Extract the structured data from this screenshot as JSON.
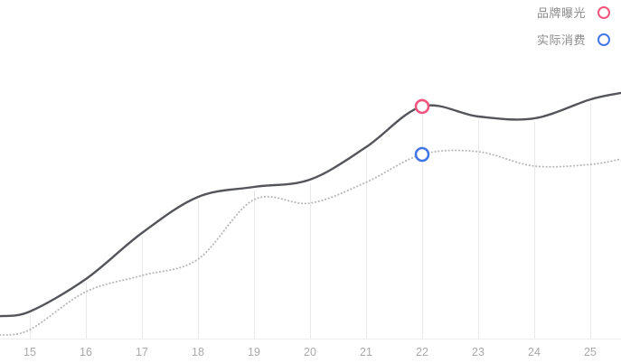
{
  "legend": {
    "items": [
      {
        "label": "品牌曝光",
        "color": "#f1557f"
      },
      {
        "label": "实际消费",
        "color": "#4476e8"
      }
    ]
  },
  "x_axis": {
    "labels": [
      "15",
      "16",
      "17",
      "18",
      "19",
      "20",
      "21",
      "22",
      "23",
      "24",
      "25"
    ],
    "label_color": "#a9a9a9",
    "axis_line_color": "#ededed",
    "dropline_color": "#e9e9e9"
  },
  "chart_data": {
    "type": "line",
    "title": "",
    "xlabel": "",
    "ylabel": "",
    "x": [
      15,
      16,
      17,
      18,
      19,
      20,
      21,
      22,
      23,
      24,
      25
    ],
    "xlim": [
      14.47,
      25.55
    ],
    "ylim": [
      0,
      100
    ],
    "grid": "vertical-droplines-only",
    "legend_position": "top-right",
    "series": [
      {
        "name": "品牌曝光",
        "style": "solid",
        "color": "#54555a",
        "values": [
          10,
          22,
          39,
          52.3,
          56,
          58.7,
          70.7,
          85.7,
          82,
          81.3,
          88.3
        ],
        "edge_start": {
          "x": 14.47,
          "value": 8.3
        },
        "edge_end": {
          "x": 25.55,
          "value": 90.7
        },
        "highlight_marker": {
          "x": 22,
          "value": 85.7,
          "ring_color": "#f1557f"
        }
      },
      {
        "name": "实际消费",
        "style": "dotted",
        "color": "#b8b8b8",
        "values": [
          3.3,
          17.3,
          23.3,
          29.3,
          51.3,
          50,
          57.7,
          68,
          69,
          63.7,
          64.3
        ],
        "edge_start": {
          "x": 14.47,
          "value": 1.3
        },
        "edge_end": {
          "x": 25.55,
          "value": 66.3
        },
        "highlight_marker": {
          "x": 22,
          "value": 68,
          "ring_color": "#4476e8"
        }
      }
    ]
  }
}
